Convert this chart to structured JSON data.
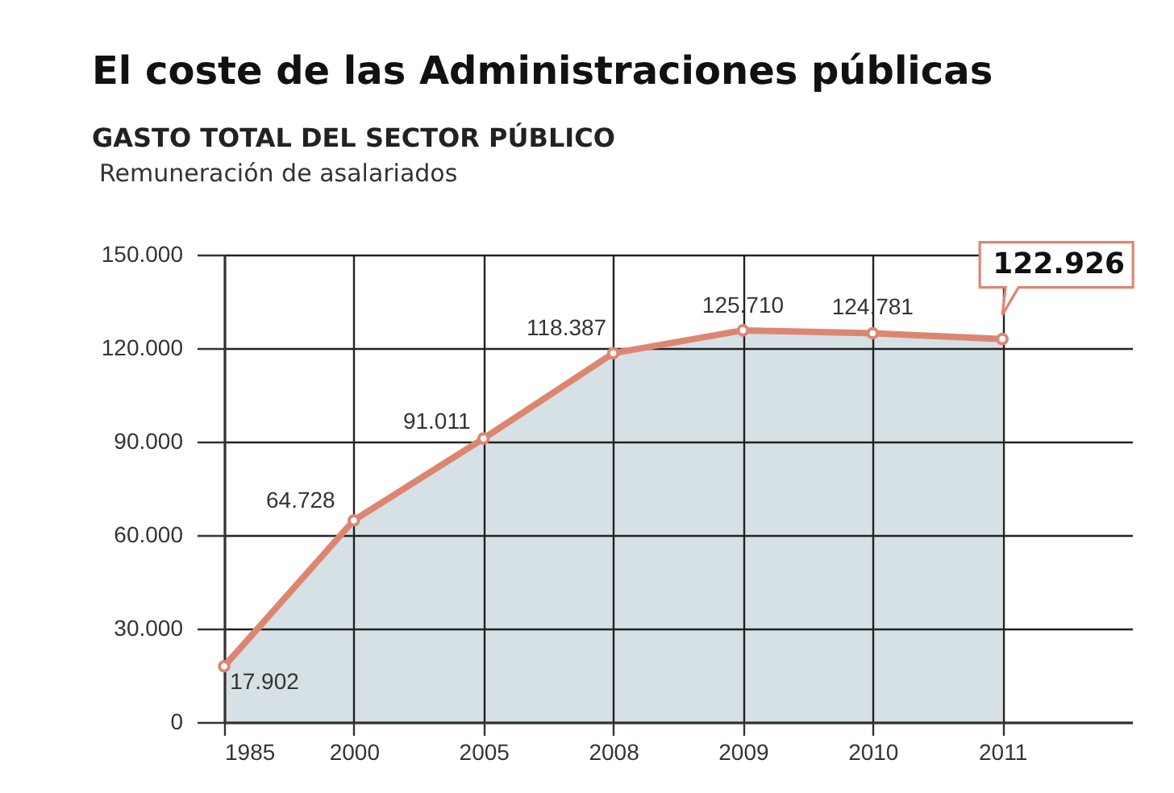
{
  "chart_data": {
    "type": "area",
    "title": "El coste de las Administraciones públicas",
    "subtitle": "GASTO TOTAL DEL SECTOR PÚBLICO",
    "ylabel": "Remuneración de asalariados",
    "categories": [
      "1985",
      "2000",
      "2005",
      "2008",
      "2009",
      "2010",
      "2011"
    ],
    "series": [
      {
        "color": "#d5e1e5",
        "values": [
          17902,
          64728,
          91011,
          118387,
          125710,
          124781,
          122926
        ],
        "value_labels": [
          "17.902",
          "64.728",
          "91.011",
          "118.387",
          "125.710",
          "124.781",
          "122.926"
        ]
      }
    ],
    "ylim": [
      0,
      150000
    ],
    "yticks": [
      0,
      {
        "value": 30000,
        "label": "30.000"
      },
      {
        "value": 60000,
        "label": "60.000"
      },
      {
        "value": 90000,
        "label": "90.000"
      },
      {
        "value": 120000,
        "label": "120.000"
      },
      {
        "value": 150000,
        "label": "150.000"
      }
    ],
    "grid": true,
    "marker": "circle",
    "line_style": "solid"
  }
}
